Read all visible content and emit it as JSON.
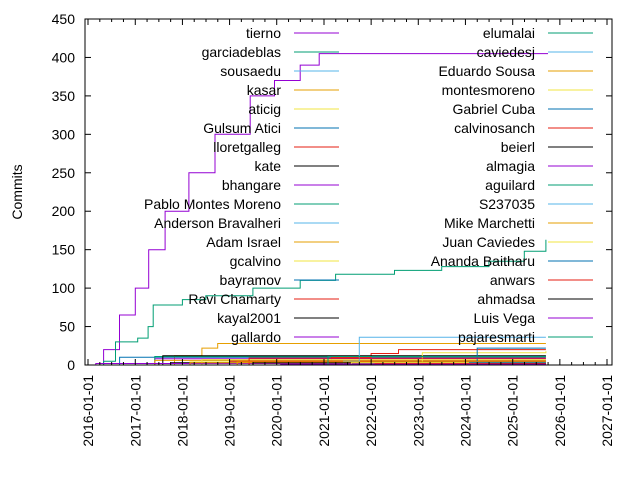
{
  "chart_data": {
    "type": "line",
    "title": "",
    "xlabel": "",
    "ylabel": "Commits",
    "ylim": [
      0,
      450
    ],
    "xlim": [
      "2016-01-01",
      "2027-01-01"
    ],
    "yticks": [
      "0",
      "50",
      "100",
      "150",
      "200",
      "250",
      "300",
      "350",
      "400",
      "450"
    ],
    "xticks": [
      "2016-01-01",
      "2017-01-01",
      "2018-01-01",
      "2019-01-01",
      "2020-01-01",
      "2021-01-01",
      "2022-01-01",
      "2023-01-01",
      "2024-01-01",
      "2025-01-01",
      "2026-01-01",
      "2027-01-01"
    ],
    "legend_position": "top-right (two columns, inside)",
    "grid": false,
    "palette": [
      "#9400d3",
      "#009e73",
      "#56b4e9",
      "#e69f00",
      "#f0e442",
      "#0072b2",
      "#e51e10",
      "#000000"
    ],
    "series": [
      {
        "name": "tierno",
        "points": [
          [
            "2016-02-15",
            0
          ],
          [
            "2016-05-01",
            20
          ],
          [
            "2016-09-01",
            65
          ],
          [
            "2017-01-01",
            100
          ],
          [
            "2017-04-15",
            150
          ],
          [
            "2017-08-20",
            200
          ],
          [
            "2018-02-20",
            250
          ],
          [
            "2018-09-10",
            300
          ],
          [
            "2019-06-10",
            350
          ],
          [
            "2019-12-15",
            370
          ],
          [
            "2020-07-01",
            390
          ],
          [
            "2020-11-25",
            405
          ],
          [
            "2025-10-01",
            405
          ]
        ]
      },
      {
        "name": "garciadeblas",
        "points": [
          [
            "2016-03-01",
            0
          ],
          [
            "2016-05-01",
            5
          ],
          [
            "2016-08-01",
            30
          ],
          [
            "2017-01-20",
            35
          ],
          [
            "2017-04-10",
            50
          ],
          [
            "2017-05-20",
            78
          ],
          [
            "2018-01-01",
            85
          ],
          [
            "2018-07-01",
            90
          ],
          [
            "2019-07-01",
            100
          ],
          [
            "2020-07-01",
            110
          ],
          [
            "2021-04-01",
            118
          ],
          [
            "2022-07-01",
            123
          ],
          [
            "2023-07-01",
            128
          ],
          [
            "2024-07-01",
            135
          ],
          [
            "2025-04-01",
            148
          ],
          [
            "2025-09-15",
            163
          ]
        ]
      },
      {
        "name": "sousaedu",
        "points": [
          [
            "2017-06-01",
            0
          ],
          [
            "2018-06-01",
            6
          ],
          [
            "2025-09-15",
            6
          ]
        ]
      },
      {
        "name": "kasar",
        "points": [
          [
            "2017-09-01",
            0
          ],
          [
            "2017-11-01",
            12
          ],
          [
            "2018-06-01",
            22
          ],
          [
            "2018-10-01",
            28
          ],
          [
            "2025-09-15",
            28
          ]
        ]
      },
      {
        "name": "aticig",
        "points": [
          [
            "2018-01-01",
            0
          ],
          [
            "2018-03-01",
            4
          ],
          [
            "2025-09-15",
            4
          ]
        ]
      },
      {
        "name": "Gulsum Atici",
        "points": [
          [
            "2016-09-01",
            0
          ],
          [
            "2016-09-02",
            10
          ],
          [
            "2025-09-15",
            10
          ]
        ]
      },
      {
        "name": "lloretgalleg",
        "points": [
          [
            "2021-01-01",
            0
          ],
          [
            "2021-03-01",
            10
          ],
          [
            "2022-01-01",
            15
          ],
          [
            "2022-08-01",
            20
          ],
          [
            "2025-09-15",
            20
          ]
        ]
      },
      {
        "name": "kate",
        "points": [
          [
            "2017-10-01",
            0
          ],
          [
            "2017-10-02",
            3
          ],
          [
            "2025-09-15",
            3
          ]
        ]
      },
      {
        "name": "bhangare",
        "points": [
          [
            "2017-05-01",
            0
          ],
          [
            "2017-06-01",
            8
          ],
          [
            "2025-09-15",
            8
          ]
        ]
      },
      {
        "name": "Pablo Montes Moreno",
        "points": [
          [
            "2017-03-01",
            0
          ],
          [
            "2017-06-01",
            11
          ],
          [
            "2025-09-15",
            11
          ]
        ]
      },
      {
        "name": "Anderson Bravalheri",
        "points": [
          [
            "2018-01-01",
            0
          ],
          [
            "2019-01-01",
            5
          ],
          [
            "2025-09-15",
            5
          ]
        ]
      },
      {
        "name": "Adam Israel",
        "points": [
          [
            "2017-04-01",
            0
          ],
          [
            "2017-06-01",
            6
          ],
          [
            "2025-09-15",
            6
          ]
        ]
      },
      {
        "name": "gcalvino",
        "points": [
          [
            "2018-01-01",
            0
          ],
          [
            "2018-06-01",
            7
          ],
          [
            "2025-09-15",
            7
          ]
        ]
      },
      {
        "name": "bayramov",
        "points": [
          [
            "2018-06-01",
            0
          ],
          [
            "2019-06-01",
            2
          ],
          [
            "2025-09-15",
            2
          ]
        ]
      },
      {
        "name": "Ravi Chamarty",
        "points": [
          [
            "2018-10-01",
            0
          ],
          [
            "2019-01-01",
            5
          ],
          [
            "2025-09-15",
            5
          ]
        ]
      },
      {
        "name": "kayal2001",
        "points": [
          [
            "2017-08-01",
            0
          ],
          [
            "2017-08-02",
            12
          ],
          [
            "2025-09-15",
            12
          ]
        ]
      },
      {
        "name": "gallardo",
        "points": [
          [
            "2016-01-15",
            0
          ],
          [
            "2016-03-01",
            2
          ],
          [
            "2025-09-15",
            2
          ]
        ]
      },
      {
        "name": "elumalai",
        "points": [
          [
            "2021-01-01",
            0
          ],
          [
            "2022-01-01",
            4
          ],
          [
            "2025-09-15",
            4
          ]
        ]
      },
      {
        "name": "caviedesj",
        "points": [
          [
            "2021-01-01",
            0
          ],
          [
            "2021-06-01",
            5
          ],
          [
            "2021-10-01",
            36
          ],
          [
            "2025-09-15",
            36
          ]
        ]
      },
      {
        "name": "Eduardo Sousa",
        "points": [
          [
            "2017-11-01",
            0
          ],
          [
            "2018-03-01",
            3
          ],
          [
            "2025-09-15",
            3
          ]
        ]
      },
      {
        "name": "montesmoreno",
        "points": [
          [
            "2023-01-01",
            0
          ],
          [
            "2023-02-01",
            16
          ],
          [
            "2025-09-15",
            18
          ]
        ]
      },
      {
        "name": "Gabriel Cuba",
        "points": [
          [
            "2023-12-01",
            0
          ],
          [
            "2024-04-01",
            22
          ],
          [
            "2025-09-15",
            22
          ]
        ]
      },
      {
        "name": "calvinosanch",
        "points": [
          [
            "2019-05-01",
            0
          ],
          [
            "2019-06-01",
            9
          ],
          [
            "2025-09-15",
            9
          ]
        ]
      },
      {
        "name": "beierl",
        "points": [
          [
            "2019-06-01",
            0
          ],
          [
            "2019-07-01",
            3
          ],
          [
            "2025-09-15",
            3
          ]
        ]
      },
      {
        "name": "almagia",
        "points": [
          [
            "2020-06-01",
            0
          ],
          [
            "2020-07-01",
            1
          ],
          [
            "2025-09-15",
            1
          ]
        ]
      },
      {
        "name": "aguilard",
        "points": [
          [
            "2022-06-01",
            0
          ],
          [
            "2022-07-01",
            2
          ],
          [
            "2025-09-15",
            2
          ]
        ]
      },
      {
        "name": "S237035",
        "points": [
          [
            "2023-06-01",
            0
          ],
          [
            "2023-07-01",
            1
          ],
          [
            "2025-09-15",
            1
          ]
        ]
      },
      {
        "name": "Mike Marchetti",
        "points": [
          [
            "2019-01-01",
            0
          ],
          [
            "2019-03-01",
            4
          ],
          [
            "2025-09-15",
            4
          ]
        ]
      },
      {
        "name": "Juan Caviedes",
        "points": [
          [
            "2021-06-01",
            0
          ],
          [
            "2021-08-01",
            3
          ],
          [
            "2025-09-15",
            3
          ]
        ]
      },
      {
        "name": "Ananda Baitharu",
        "points": [
          [
            "2024-01-01",
            0
          ],
          [
            "2024-02-01",
            3
          ],
          [
            "2025-09-15",
            3
          ]
        ]
      },
      {
        "name": "anwars",
        "points": [
          [
            "2022-01-01",
            0
          ],
          [
            "2022-02-01",
            2
          ],
          [
            "2025-09-15",
            2
          ]
        ]
      },
      {
        "name": "ahmadsa",
        "points": [
          [
            "2024-06-01",
            0
          ],
          [
            "2024-07-01",
            1
          ],
          [
            "2025-09-15",
            1
          ]
        ]
      },
      {
        "name": "Luis Vega",
        "points": [
          [
            "2020-01-01",
            0
          ],
          [
            "2020-02-01",
            1
          ],
          [
            "2025-09-15",
            1
          ]
        ]
      },
      {
        "name": "pajaresmarti",
        "points": [
          [
            "2021-01-01",
            0
          ],
          [
            "2021-02-01",
            11
          ],
          [
            "2025-09-15",
            11
          ]
        ]
      }
    ]
  }
}
